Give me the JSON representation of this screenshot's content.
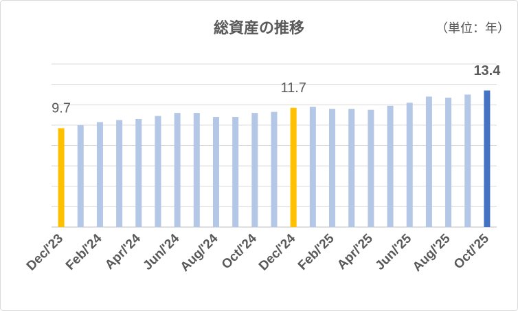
{
  "chart_data": {
    "type": "bar",
    "title": "総資産の推移",
    "subtitle": "（単位：年）",
    "categories": [
      "Dec/'23",
      null,
      "Feb/'24",
      null,
      "Apr/'24",
      null,
      "Jun/'24",
      null,
      "Aug/'24",
      null,
      "Oct/'24",
      null,
      "Dec/'24",
      null,
      "Feb/'25",
      null,
      "Apr/'25",
      null,
      "Jun/'25",
      null,
      "Aug/'25",
      null,
      "Oct/'25"
    ],
    "values": [
      9.7,
      10.0,
      10.3,
      10.5,
      10.6,
      10.9,
      11.2,
      11.2,
      10.8,
      10.8,
      11.2,
      11.3,
      11.7,
      11.8,
      11.6,
      11.6,
      11.5,
      11.9,
      12.2,
      12.8,
      12.7,
      13.0,
      13.4
    ],
    "colors": [
      "#ffc000",
      "#b4c7e7",
      "#b4c7e7",
      "#b4c7e7",
      "#b4c7e7",
      "#b4c7e7",
      "#b4c7e7",
      "#b4c7e7",
      "#b4c7e7",
      "#b4c7e7",
      "#b4c7e7",
      "#b4c7e7",
      "#ffc000",
      "#b4c7e7",
      "#b4c7e7",
      "#b4c7e7",
      "#b4c7e7",
      "#b4c7e7",
      "#b4c7e7",
      "#b4c7e7",
      "#b4c7e7",
      "#b4c7e7",
      "#4472c4"
    ],
    "labeled_indices": [
      0,
      12,
      22
    ],
    "bold_labels": [
      22
    ],
    "ylim": [
      0,
      16
    ],
    "yticks": [
      0,
      2,
      4,
      6,
      8,
      10,
      12,
      14,
      16
    ],
    "grid": true
  }
}
